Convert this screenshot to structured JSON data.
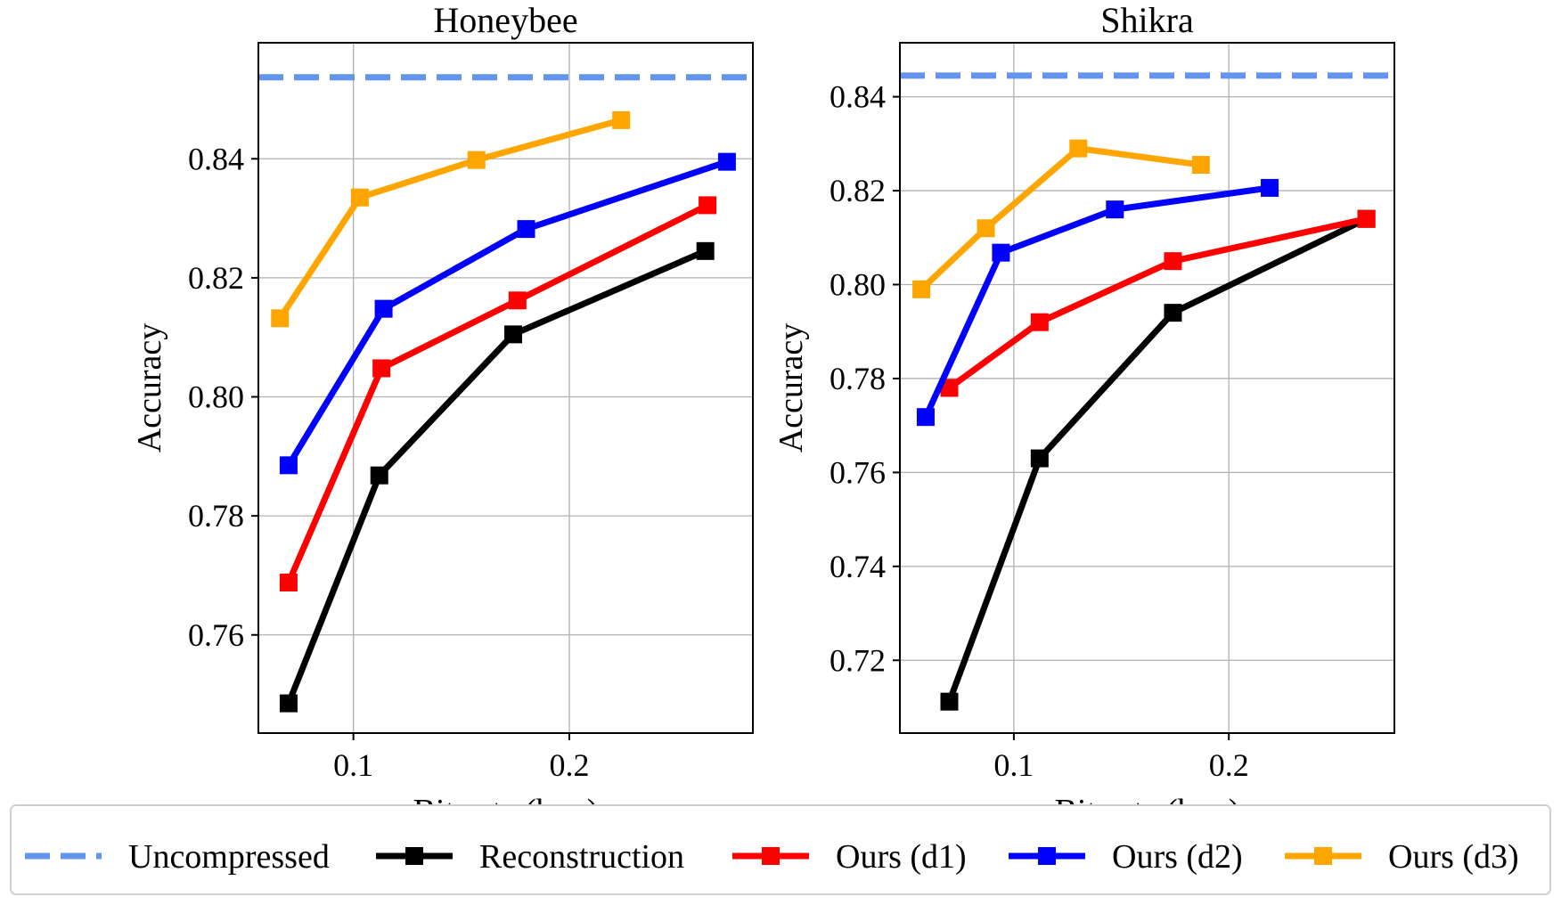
{
  "chart_data": [
    {
      "type": "line",
      "title": "Honeybee",
      "xlabel": "Bit-rate (bpp)",
      "ylabel": "Accuracy",
      "xlim": [
        0.056,
        0.285
      ],
      "ylim": [
        0.7435,
        0.8595
      ],
      "xticks": [
        0.1,
        0.2
      ],
      "xtick_labels": [
        "0.1",
        "0.2"
      ],
      "yticks": [
        0.76,
        0.78,
        0.8,
        0.82,
        0.84
      ],
      "ytick_labels": [
        "0.76",
        "0.78",
        "0.80",
        "0.82",
        "0.84"
      ],
      "grid": true,
      "baseline": {
        "name": "Uncompressed",
        "value": 0.8537
      },
      "series": [
        {
          "name": "Reconstruction",
          "x": [
            0.07,
            0.112,
            0.174,
            0.263
          ],
          "y": [
            0.7485,
            0.7868,
            0.8105,
            0.8245
          ]
        },
        {
          "name": "Ours (d1)",
          "x": [
            0.07,
            0.113,
            0.176,
            0.264
          ],
          "y": [
            0.7688,
            0.8048,
            0.8162,
            0.8322
          ]
        },
        {
          "name": "Ours (d2)",
          "x": [
            0.07,
            0.114,
            0.18,
            0.273
          ],
          "y": [
            0.7885,
            0.8148,
            0.8282,
            0.8395
          ]
        },
        {
          "name": "Ours (d3)",
          "x": [
            0.066,
            0.103,
            0.157,
            0.224
          ],
          "y": [
            0.8132,
            0.8335,
            0.8398,
            0.8465
          ]
        }
      ]
    },
    {
      "type": "line",
      "title": "Shikra",
      "xlabel": "Bit-rate (bpp)",
      "ylabel": "Accuracy",
      "xlim": [
        0.047,
        0.277
      ],
      "ylim": [
        0.7045,
        0.8515
      ],
      "xticks": [
        0.1,
        0.2
      ],
      "xtick_labels": [
        "0.1",
        "0.2"
      ],
      "yticks": [
        0.72,
        0.74,
        0.76,
        0.78,
        0.8,
        0.82,
        0.84
      ],
      "ytick_labels": [
        "0.72",
        "0.74",
        "0.76",
        "0.78",
        "0.80",
        "0.82",
        "0.84"
      ],
      "grid": true,
      "baseline": {
        "name": "Uncompressed",
        "value": 0.8445
      },
      "series": [
        {
          "name": "Reconstruction",
          "x": [
            0.07,
            0.112,
            0.174,
            0.264
          ],
          "y": [
            0.7112,
            0.763,
            0.794,
            0.814
          ]
        },
        {
          "name": "Ours (d1)",
          "x": [
            0.07,
            0.112,
            0.174,
            0.264
          ],
          "y": [
            0.778,
            0.792,
            0.805,
            0.814
          ]
        },
        {
          "name": "Ours (d2)",
          "x": [
            0.059,
            0.094,
            0.147,
            0.219
          ],
          "y": [
            0.7718,
            0.8068,
            0.816,
            0.8206
          ]
        },
        {
          "name": "Ours (d3)",
          "x": [
            0.057,
            0.087,
            0.13,
            0.187
          ],
          "y": [
            0.799,
            0.812,
            0.829,
            0.8255
          ]
        }
      ]
    }
  ],
  "legend": {
    "placement": "bottom",
    "items": [
      {
        "name": "Uncompressed",
        "color": "#6495ED",
        "style": "dashed",
        "marker": "none"
      },
      {
        "name": "Reconstruction",
        "color": "#000000",
        "style": "solid",
        "marker": "square"
      },
      {
        "name": "Ours (d1)",
        "color": "#FF0000",
        "style": "solid",
        "marker": "square"
      },
      {
        "name": "Ours (d2)",
        "color": "#0000FF",
        "style": "solid",
        "marker": "square"
      },
      {
        "name": "Ours (d3)",
        "color": "#FFA500",
        "style": "solid",
        "marker": "square"
      }
    ]
  },
  "series_colors": {
    "Uncompressed": "#6495ED",
    "Reconstruction": "#000000",
    "Ours (d1)": "#FF0000",
    "Ours (d2)": "#0000FF",
    "Ours (d3)": "#FFA500"
  }
}
